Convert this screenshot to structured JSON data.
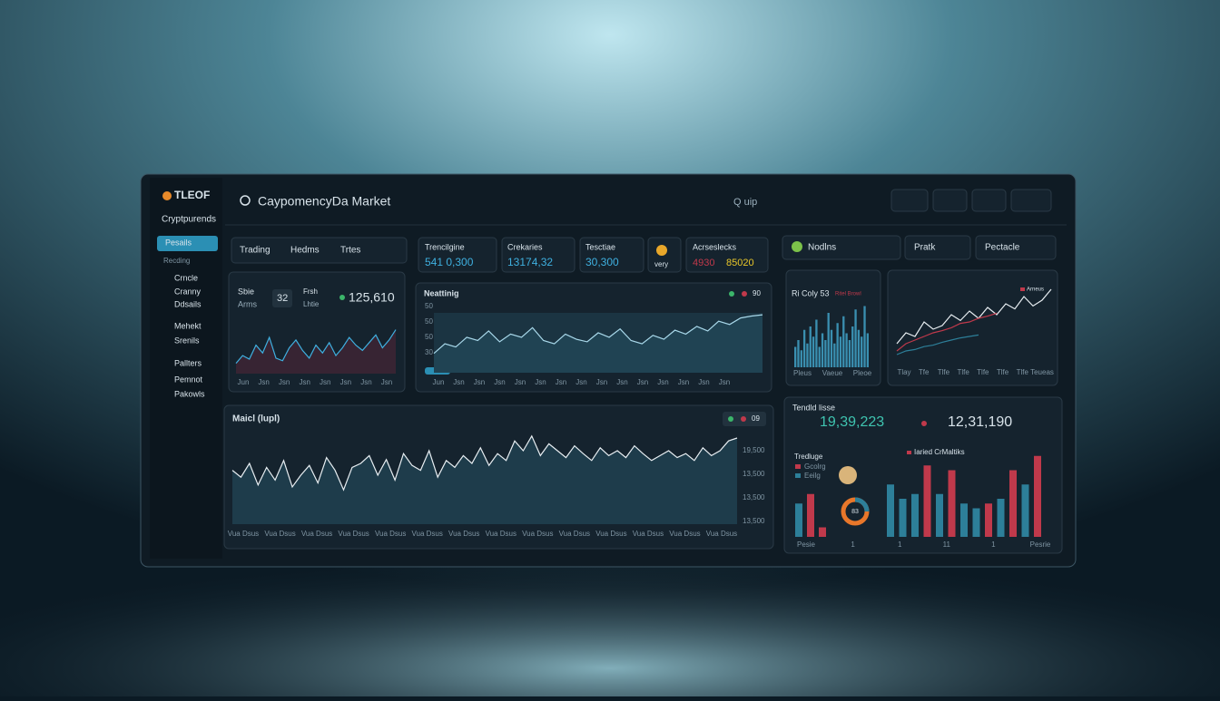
{
  "sidebar": {
    "logo": "TLEOF",
    "title": "Cryptpurends",
    "active": "Pesails",
    "section": "Recding",
    "items": [
      "Crncle",
      "Cranny",
      "Ddsails",
      "Mehekt",
      "Srenils",
      "Pallters",
      "Pemnot",
      "Pakowls"
    ]
  },
  "header": {
    "search": "CaypomencyDa Market",
    "user": "Q uip"
  },
  "tabs": [
    "Trading",
    "Hedms",
    "Trtes"
  ],
  "stats": [
    {
      "label": "Trencilgine",
      "value": "541 0,300"
    },
    {
      "label": "Crekaries",
      "value": "13174,32"
    },
    {
      "label": "Tesctiae",
      "value": "30,300"
    }
  ],
  "coin_label": "very",
  "stat_pair": {
    "label": "Acrseslecks",
    "value1": "4930",
    "value2": "85020"
  },
  "right_tabs": [
    "Nodlns",
    "Pratk",
    "Pectacle"
  ],
  "panel_a": {
    "label1": "Sbie",
    "label2": "Arms",
    "badge": "32",
    "label3": "Frsh",
    "label4": "Lhtie",
    "value": "125,610",
    "values": [
      20,
      35,
      28,
      55,
      40,
      70,
      30,
      25,
      50,
      65,
      45,
      30,
      55,
      40,
      60,
      35,
      50,
      70,
      55,
      45,
      60,
      75,
      50,
      65,
      85
    ],
    "xlabels": [
      "Jun",
      "Jsn",
      "Jsn",
      "Jsn",
      "Jsn",
      "Jsn",
      "Jsn",
      "Jsn"
    ]
  },
  "panel_b": {
    "title": "Neattinig",
    "legend": "90",
    "values": [
      30,
      45,
      40,
      55,
      50,
      65,
      48,
      60,
      55,
      70,
      50,
      45,
      60,
      52,
      48,
      62,
      55,
      68,
      50,
      45,
      58,
      52,
      66,
      60,
      72,
      65,
      80,
      75,
      85,
      88,
      90
    ],
    "ylabels": [
      "50",
      "50",
      "50",
      "30"
    ],
    "xlabels": [
      "Jun",
      "Jsn",
      "Jsn",
      "Jsn",
      "Jsn",
      "Jsn",
      "Jsn",
      "Jsn",
      "Jsn",
      "Jsn",
      "Jsn",
      "Jsn",
      "Jsn",
      "Jsn",
      "Jsn"
    ]
  },
  "panel_c": {
    "title": "Ri Coly 53",
    "subtitle": "Ritel Browl",
    "values": [
      30,
      40,
      25,
      55,
      35,
      60,
      45,
      70,
      30,
      50,
      40,
      80,
      55,
      35,
      65,
      45,
      75,
      50,
      40,
      60,
      85,
      55,
      45,
      90,
      50
    ],
    "xlabels": [
      "Pleus",
      "Vaeue",
      "Pleoe"
    ]
  },
  "panel_d": {
    "legend": "Arneus",
    "series": [
      {
        "color": "#e8eef2",
        "values": [
          20,
          35,
          30,
          50,
          40,
          45,
          60,
          52,
          65,
          55,
          70,
          60,
          75,
          68,
          85,
          72,
          80,
          95
        ]
      },
      {
        "color": "#c0394b",
        "values": [
          10,
          20,
          25,
          30,
          35,
          38,
          42,
          48,
          50,
          55,
          58,
          62
        ]
      },
      {
        "color": "#2d7f99",
        "values": [
          5,
          10,
          12,
          16,
          18,
          22,
          25,
          28,
          30,
          32
        ]
      }
    ],
    "xlabels": [
      "Tlay",
      "Tfe",
      "Tlfe",
      "Tlfe",
      "Tlfe",
      "Tlfe",
      "Tlfe",
      "Teueas"
    ]
  },
  "panel_main": {
    "title": "Maicl (lupl)",
    "legend": "09",
    "values": [
      55,
      48,
      62,
      40,
      58,
      45,
      65,
      38,
      50,
      60,
      42,
      68,
      55,
      35,
      58,
      62,
      70,
      50,
      66,
      45,
      72,
      60,
      55,
      75,
      48,
      65,
      58,
      70,
      62,
      78,
      60,
      72,
      65,
      85,
      75,
      90,
      70,
      82,
      75,
      68,
      80,
      72,
      65,
      78,
      70,
      75,
      68,
      80,
      72,
      65,
      70,
      75,
      68,
      72,
      65,
      78,
      70,
      75,
      85,
      88
    ],
    "ylabels": [
      "19,500",
      "13,500",
      "13,500",
      "13,500"
    ],
    "xlabels": [
      "Vua Dsus",
      "Vua Dsus",
      "Vua Dsus",
      "Vua Dsus",
      "Vua Dsus",
      "Vua Dsus",
      "Vua Dsus",
      "Vua Dsus",
      "Vua Dsus",
      "Vua Dsus",
      "Vua Dsus",
      "Vua Dsus",
      "Vua Dsus",
      "Vua Dsus"
    ]
  },
  "panel_e": {
    "label1": "Tendld lisse",
    "value1": "19,39,223",
    "value2": "12,31,190",
    "legend_title": "Tredluge",
    "legend": [
      "Gcolrg",
      "Eeilg"
    ],
    "donut": "83",
    "bars_title": "Iaried CrMaltiks",
    "bars": [
      35,
      45,
      10,
      55,
      40,
      45,
      75,
      45,
      70,
      35,
      30,
      35,
      40,
      70,
      55,
      85
    ],
    "bar_colors": [
      "#2d7f99",
      "#c0394b",
      "#c0394b",
      "#2d7f99",
      "#2d7f99",
      "#2d7f99",
      "#c0394b",
      "#2d7f99",
      "#c0394b",
      "#2d7f99",
      "#2d7f99",
      "#c0394b",
      "#2d7f99",
      "#c0394b",
      "#2d7f99",
      "#c0394b"
    ],
    "xlabels": [
      "Pesie",
      "1",
      "1",
      "11",
      "1",
      "Pesrie"
    ]
  }
}
